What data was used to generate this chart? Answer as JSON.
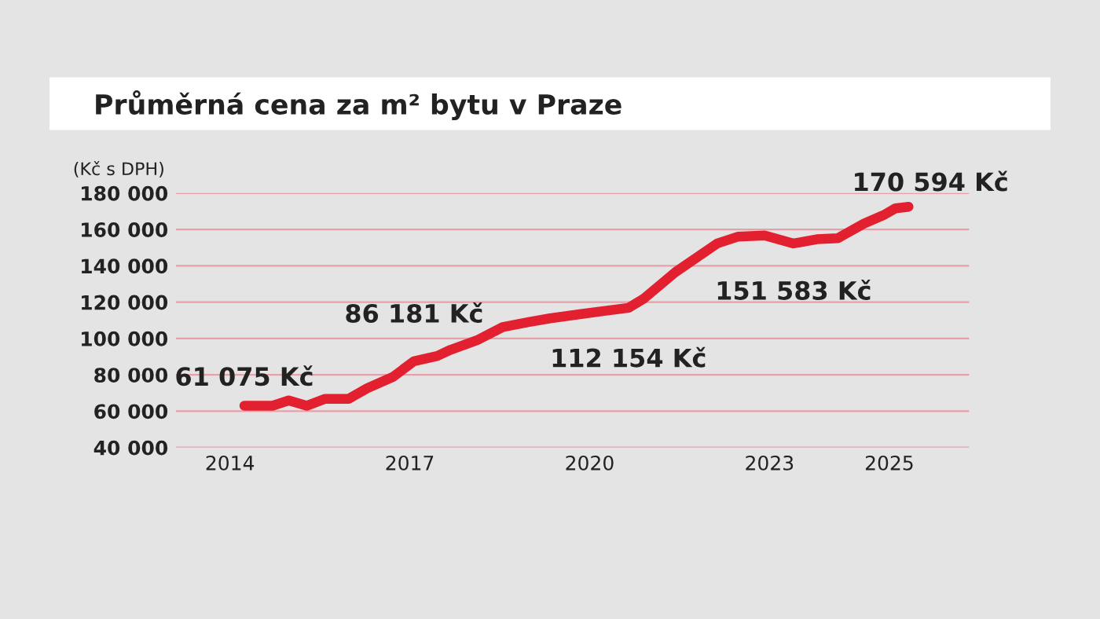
{
  "chart_data": {
    "type": "line",
    "title": "Průměrná cena za m² bytu v Praze",
    "ylabel": "(Kč s DPH)",
    "x": [
      2014.24,
      2014.71,
      2014.98,
      2015.28,
      2015.59,
      2015.98,
      2016.29,
      2016.72,
      2017.07,
      2017.46,
      2017.68,
      2018.12,
      2018.55,
      2018.99,
      2019.34,
      2019.86,
      2020.65,
      2020.91,
      2021.43,
      2022.13,
      2022.48,
      2022.92,
      2023.4,
      2023.79,
      2024.14,
      2024.58,
      2024.92,
      2025.1,
      2025.32
    ],
    "series": [
      {
        "color": "#e3202f",
        "values": [
          63000,
          63000,
          65900,
          63000,
          66800,
          66800,
          72600,
          78900,
          87500,
          90400,
          93800,
          99000,
          106300,
          109100,
          111100,
          113500,
          116900,
          122100,
          136500,
          152300,
          156100,
          156700,
          152300,
          154600,
          155200,
          163300,
          168200,
          171600,
          172500
        ]
      }
    ],
    "xlim": [
      2013.1,
      2026.33
    ],
    "xticks": [
      2014,
      2017,
      2020,
      2023,
      2025
    ],
    "ylim": [
      40000,
      180000
    ],
    "yticks": [
      {
        "value": 40000,
        "label": "40 000"
      },
      {
        "value": 60000,
        "label": "60 000"
      },
      {
        "value": 80000,
        "label": "80 000"
      },
      {
        "value": 100000,
        "label": "100 000"
      },
      {
        "value": 120000,
        "label": "120 000"
      },
      {
        "value": 140000,
        "label": "140 000"
      },
      {
        "value": 160000,
        "label": "160 000"
      },
      {
        "value": 180000,
        "label": "180 000"
      }
    ],
    "grid": "y",
    "legend": false,
    "line_style": "solid",
    "marker": "none",
    "annotations": [
      {
        "text": "61 075 Kč",
        "x": 2014.24,
        "y": 61075
      },
      {
        "text": "86 181 Kč",
        "x": 2017.07,
        "y": 86181
      },
      {
        "text": "112 154 Kč",
        "x": 2020.1,
        "y": 112154
      },
      {
        "text": "151 583 Kč",
        "x": 2023.4,
        "y": 151583
      },
      {
        "text": "170 594 Kč",
        "x": 2025.32,
        "y": 170594
      }
    ]
  }
}
